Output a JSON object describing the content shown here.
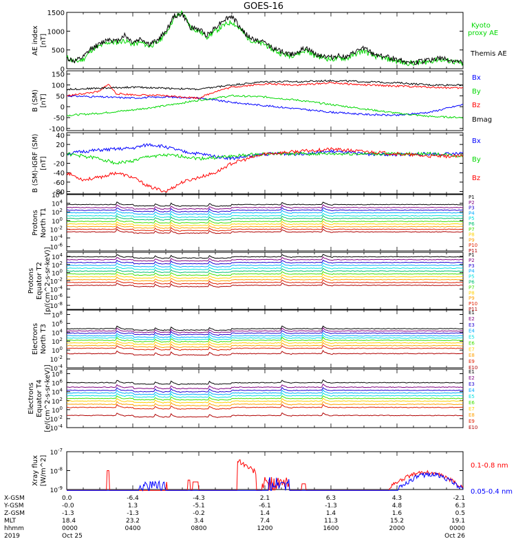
{
  "title": "GOES-16",
  "colors": {
    "black": "#000000",
    "red": "#ff0000",
    "green": "#00d800",
    "blue": "#0000ff",
    "p_series": [
      "#000000",
      "#800080",
      "#1e00d2",
      "#00aaff",
      "#00e0e0",
      "#00c070",
      "#40e000",
      "#ffd000",
      "#ffa000",
      "#e02000",
      "#b00000"
    ]
  },
  "chart_data": [
    {
      "type": "line",
      "panel": "ae",
      "ylabel": "AE index [nT]",
      "ylim": [
        0,
        1500
      ],
      "yticks": [
        "0",
        "500",
        "1000",
        "1500"
      ],
      "series": [
        {
          "name": "Kyoto proxy AE",
          "color": "#00d800",
          "x": [
            0,
            0.5,
            1,
            1.5,
            2,
            2.5,
            3,
            3.5,
            4,
            4.5,
            5,
            5.5,
            6,
            6.5,
            7,
            7.5,
            8,
            8.5,
            9,
            9.5,
            10,
            10.5,
            11,
            11.5,
            12,
            12.5,
            13,
            13.5,
            14,
            14.5,
            15,
            15.5,
            16,
            16.5,
            17,
            17.5,
            18,
            18.5,
            19,
            19.5,
            20,
            20.5,
            21,
            21.5,
            22,
            22.5,
            23,
            23.5,
            24
          ],
          "y": [
            300,
            180,
            250,
            500,
            600,
            700,
            700,
            750,
            650,
            700,
            600,
            700,
            950,
            1350,
            1500,
            1100,
            1000,
            850,
            1000,
            1150,
            1250,
            1050,
            800,
            700,
            650,
            500,
            400,
            350,
            400,
            500,
            350,
            300,
            250,
            280,
            280,
            400,
            480,
            350,
            300,
            250,
            200,
            150,
            150,
            160,
            200,
            250,
            220,
            180,
            120
          ]
        },
        {
          "name": "Themis AE",
          "color": "#000000",
          "x": [
            0,
            0.5,
            1,
            1.5,
            2,
            2.5,
            3,
            3.5,
            4,
            4.5,
            5,
            5.5,
            6,
            6.5,
            7,
            7.5,
            8,
            8.5,
            9,
            9.5,
            10,
            10.5,
            11,
            11.5,
            12,
            12.5,
            13,
            13.5,
            14,
            14.5,
            15,
            15.5,
            16,
            16.5,
            17,
            17.5,
            18,
            18.5,
            19,
            19.5,
            20,
            20.5,
            21,
            21.5,
            22,
            22.5,
            23,
            23.5,
            24
          ],
          "y": [
            280,
            200,
            300,
            550,
            650,
            800,
            720,
            900,
            700,
            800,
            650,
            750,
            1000,
            1400,
            1450,
            1100,
            1050,
            900,
            1100,
            1300,
            1400,
            1100,
            850,
            750,
            700,
            550,
            450,
            380,
            450,
            550,
            400,
            350,
            300,
            350,
            300,
            450,
            550,
            400,
            350,
            300,
            250,
            200,
            150,
            200,
            230,
            280,
            250,
            200,
            150
          ]
        }
      ]
    },
    {
      "type": "line",
      "panel": "bsm",
      "ylabel": "B (SM) [nT]",
      "ylim": [
        -110,
        165
      ],
      "yticks": [
        "-100",
        "-50",
        "0",
        "50",
        "100",
        "150"
      ],
      "series": [
        {
          "name": "Bx",
          "color": "#0000ff",
          "x": [
            0,
            2,
            4,
            6,
            8,
            10,
            12,
            14,
            16,
            18,
            20,
            22,
            24
          ],
          "y": [
            50,
            45,
            40,
            45,
            40,
            20,
            5,
            -10,
            -25,
            -35,
            -40,
            -25,
            10
          ]
        },
        {
          "name": "By",
          "color": "#00d800",
          "x": [
            0,
            2,
            4,
            6,
            8,
            10,
            12,
            14,
            16,
            18,
            20,
            22,
            24
          ],
          "y": [
            -40,
            -30,
            -15,
            5,
            30,
            50,
            45,
            30,
            10,
            -10,
            -30,
            -45,
            -50
          ]
        },
        {
          "name": "Bz",
          "color": "#ff0000",
          "x": [
            0,
            1,
            2,
            2.5,
            3,
            4,
            6,
            8,
            9,
            10,
            12,
            14,
            16,
            18,
            20,
            22,
            24
          ],
          "y": [
            50,
            60,
            70,
            105,
            60,
            55,
            50,
            40,
            70,
            90,
            105,
            100,
            110,
            100,
            95,
            90,
            85
          ]
        },
        {
          "name": "Bmag",
          "color": "#000000",
          "x": [
            0,
            2,
            4,
            6,
            8,
            10,
            12,
            14,
            16,
            18,
            20,
            22,
            24
          ],
          "y": [
            80,
            85,
            90,
            85,
            80,
            100,
            115,
            115,
            120,
            115,
            110,
            100,
            100
          ]
        }
      ]
    },
    {
      "type": "line",
      "panel": "bdiff",
      "ylabel": "B (SM)-IGRF (SM) [nT]",
      "ylim": [
        -85,
        45
      ],
      "yticks": [
        "-80",
        "-60",
        "-40",
        "-20",
        "0",
        "20",
        "40"
      ],
      "series": [
        {
          "name": "Bx",
          "color": "#0000ff",
          "x": [
            0,
            1,
            2,
            3,
            4,
            5,
            6,
            7,
            8,
            9,
            10,
            12,
            14,
            16,
            18,
            20,
            22,
            24
          ],
          "y": [
            0,
            5,
            8,
            10,
            12,
            20,
            15,
            5,
            0,
            -5,
            -10,
            0,
            0,
            5,
            0,
            -2,
            0,
            0
          ]
        },
        {
          "name": "By",
          "color": "#00d800",
          "x": [
            0,
            1,
            2,
            3,
            4,
            5,
            6,
            7,
            8,
            9,
            10,
            12,
            14,
            16,
            18,
            20,
            22,
            24
          ],
          "y": [
            0,
            -5,
            -10,
            -20,
            -15,
            -5,
            -3,
            -5,
            -10,
            -8,
            -5,
            0,
            0,
            0,
            0,
            0,
            0,
            -5
          ]
        },
        {
          "name": "Bz",
          "color": "#ff0000",
          "x": [
            0,
            1,
            2,
            3,
            4,
            5,
            6,
            7,
            8,
            9,
            10,
            11,
            12,
            14,
            16,
            18,
            20,
            22,
            24
          ],
          "y": [
            -40,
            -55,
            -50,
            -40,
            -50,
            -70,
            -80,
            -60,
            -50,
            -40,
            -20,
            -10,
            0,
            5,
            10,
            5,
            0,
            -5,
            -5
          ]
        }
      ]
    },
    {
      "type": "line",
      "panel": "pnorth",
      "ylabel": "Protons North T1",
      "scale": "log",
      "ylim_exp": [
        -7,
        6
      ],
      "yticks": [
        "10^6",
        "10^4",
        "10^2",
        "10^0",
        "10^-2",
        "10^-4",
        "10^-6"
      ],
      "legend": [
        "P1",
        "P2",
        "P3",
        "P4",
        "P5",
        "P6",
        "P7",
        "P8",
        "P9",
        "P10",
        "P11"
      ],
      "base_exp": [
        3.7,
        3.0,
        2.4,
        1.8,
        1.1,
        0.5,
        -0.2,
        -0.8,
        -1.4,
        -2.0,
        -2.6
      ]
    },
    {
      "type": "line",
      "panel": "peq",
      "ylabel": "Protons Equator T2 [p/(cm^2-s-sr-keV)]",
      "scale": "log",
      "ylim_exp": [
        -9,
        5
      ],
      "yticks": [
        "10^4",
        "10^2",
        "10^0",
        "10^-2",
        "10^-4",
        "10^-6",
        "10^-8"
      ],
      "legend": [
        "P1",
        "P2",
        "P3",
        "P4",
        "P5",
        "P6",
        "P7",
        "P8",
        "P9",
        "P10",
        "P11"
      ],
      "base_exp": [
        3.9,
        3.2,
        2.5,
        1.8,
        1.1,
        0.4,
        -0.3,
        -1.0,
        -1.7,
        -2.4,
        -3.1
      ]
    },
    {
      "type": "line",
      "panel": "enorth",
      "ylabel": "Electrons North T3",
      "scale": "log",
      "ylim_exp": [
        -4,
        9
      ],
      "yticks": [
        "10^8",
        "10^6",
        "10^4",
        "10^2",
        "10^0",
        "10^-2",
        "10^-4"
      ],
      "legend": [
        "E1",
        "E2",
        "E3",
        "E4",
        "E5",
        "E6",
        "E7",
        "E8",
        "E9",
        "E10"
      ],
      "base_exp": [
        4.8,
        4.3,
        3.8,
        3.2,
        2.7,
        2.2,
        1.6,
        1.0,
        0.4,
        -0.8
      ]
    },
    {
      "type": "line",
      "panel": "eeq",
      "ylabel": "Electrons Equator T4 [e/(cm^2-s-sr-keV)]",
      "scale": "log",
      "ylim_exp": [
        -4,
        9
      ],
      "yticks": [
        "10^8",
        "10^6",
        "10^4",
        "10^2",
        "10^0",
        "10^-2",
        "10^-4"
      ],
      "legend": [
        "E1",
        "E2",
        "E3",
        "E4",
        "E5",
        "E6",
        "E7",
        "E8",
        "E9",
        "E10"
      ],
      "base_exp": [
        6.0,
        5.0,
        4.3,
        3.7,
        3.1,
        2.5,
        1.9,
        1.2,
        0.5,
        -1.3
      ]
    },
    {
      "type": "line",
      "panel": "xray",
      "ylabel": "Xray flux [W/m^2]",
      "scale": "log",
      "ylim_exp": [
        -9,
        -7
      ],
      "yticks": [
        "10^-7",
        "10^-8",
        "10^-9"
      ],
      "series": [
        {
          "name": "0.1-0.8 nm",
          "color": "#ff0000"
        },
        {
          "name": "0.05-0.4 nm",
          "color": "#0000ff"
        }
      ]
    }
  ],
  "legend_labels": {
    "ae": [
      "Kyoto",
      "proxy AE",
      "Themis AE"
    ],
    "bsm": [
      "Bx",
      "By",
      "Bz",
      "Bmag"
    ],
    "bdiff": [
      "Bx",
      "By",
      "Bz"
    ],
    "xray": [
      "0.1-0.8 nm",
      "0.05-0.4 nm"
    ]
  },
  "x_axis": {
    "row_labels": [
      "X-GSM",
      "Y-GSM",
      "Z-GSM",
      "MLT",
      "hhmm",
      "2019"
    ],
    "columns": [
      [
        "0.0",
        "-0.0",
        "-1.3",
        "18.4",
        "0000",
        "Oct 25"
      ],
      [
        "-6.4",
        "1.3",
        "-1.3",
        "23.2",
        "0400",
        ""
      ],
      [
        "-4.3",
        "-5.1",
        "-0.2",
        "3.4",
        "0800",
        ""
      ],
      [
        "2.1",
        "-6.1",
        "1.4",
        "7.4",
        "1200",
        ""
      ],
      [
        "6.3",
        "-1.3",
        "1.4",
        "11.3",
        "1600",
        ""
      ],
      [
        "4.3",
        "4.8",
        "1.6",
        "15.2",
        "2000",
        ""
      ],
      [
        "-2.1",
        "6.3",
        "0.5",
        "19.1",
        "0000",
        "Oct 26"
      ]
    ]
  }
}
